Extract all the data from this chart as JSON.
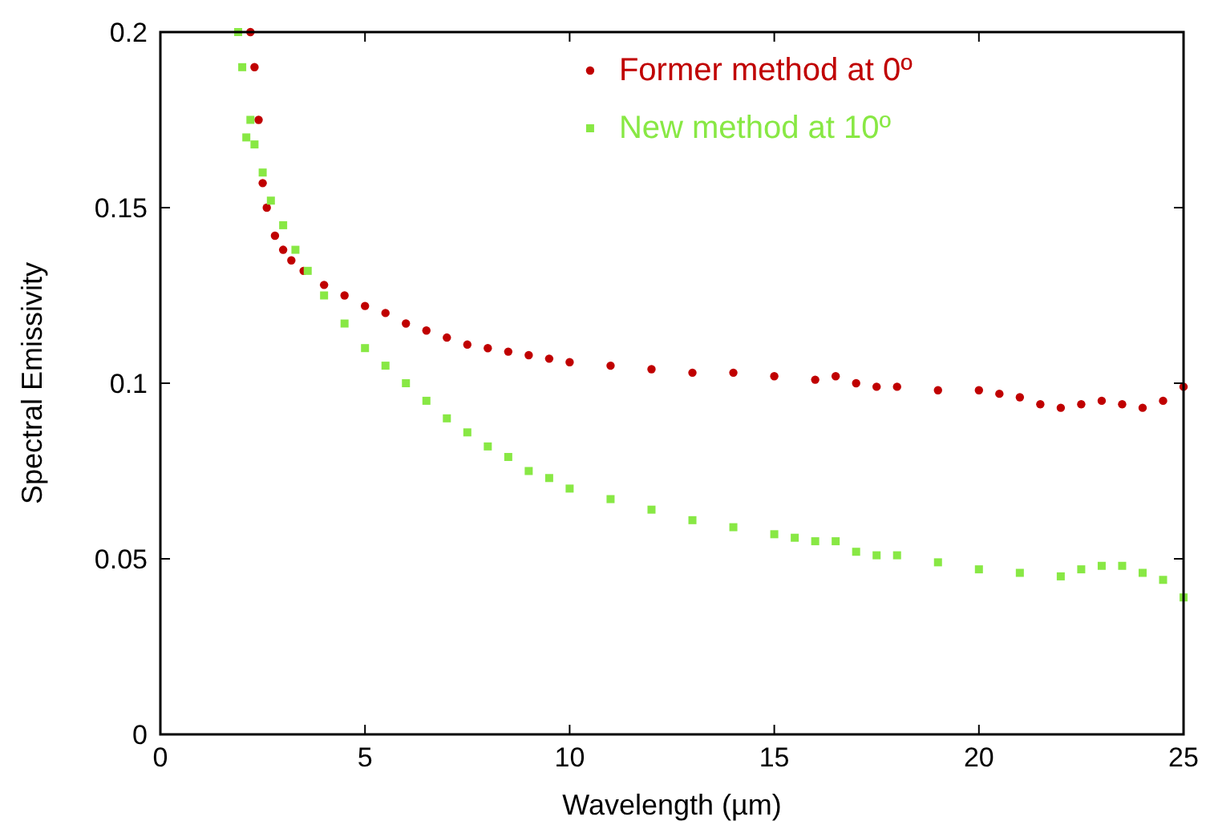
{
  "chart_data": {
    "type": "scatter",
    "xlabel": "Wavelength (µm)",
    "ylabel": "Spectral Emissivity",
    "xlim": [
      0,
      25
    ],
    "ylim": [
      0,
      0.2
    ],
    "xticks": [
      0,
      5,
      10,
      15,
      20,
      25
    ],
    "yticks": [
      0,
      0.05,
      0.1,
      0.15,
      0.2
    ],
    "grid": false,
    "legend": "top right",
    "series": [
      {
        "name": "Former method at 0º",
        "color": "#c00000",
        "marker": "circle",
        "x": [
          2.2,
          2.3,
          2.4,
          2.5,
          2.6,
          2.8,
          3,
          3.2,
          3.5,
          4,
          4.5,
          5,
          5.5,
          6,
          6.5,
          7,
          7.5,
          8,
          8.5,
          9,
          9.5,
          10,
          11,
          12,
          13,
          14,
          15,
          16,
          16.5,
          17,
          17.5,
          18,
          19,
          20,
          20.5,
          21,
          21.5,
          22,
          22.5,
          23,
          23.5,
          24,
          24.5,
          25
        ],
        "values": [
          0.2,
          0.19,
          0.175,
          0.157,
          0.15,
          0.142,
          0.138,
          0.135,
          0.132,
          0.128,
          0.125,
          0.122,
          0.12,
          0.117,
          0.115,
          0.113,
          0.111,
          0.11,
          0.109,
          0.108,
          0.107,
          0.106,
          0.105,
          0.104,
          0.103,
          0.103,
          0.102,
          0.101,
          0.102,
          0.1,
          0.099,
          0.099,
          0.098,
          0.098,
          0.097,
          0.096,
          0.094,
          0.093,
          0.094,
          0.095,
          0.094,
          0.093,
          0.095,
          0.099
        ]
      },
      {
        "name": "New method at 10º",
        "color": "#88e844",
        "marker": "square",
        "x": [
          1.9,
          2,
          2.1,
          2.2,
          2.3,
          2.5,
          2.7,
          3,
          3.3,
          3.6,
          4,
          4.5,
          5,
          5.5,
          6,
          6.5,
          7,
          7.5,
          8,
          8.5,
          9,
          9.5,
          10,
          11,
          12,
          13,
          14,
          15,
          15.5,
          16,
          16.5,
          17,
          17.5,
          18,
          19,
          20,
          21,
          22,
          22.5,
          23,
          23.5,
          24,
          24.5,
          25
        ],
        "values": [
          0.2,
          0.19,
          0.17,
          0.175,
          0.168,
          0.16,
          0.152,
          0.145,
          0.138,
          0.132,
          0.125,
          0.117,
          0.11,
          0.105,
          0.1,
          0.095,
          0.09,
          0.086,
          0.082,
          0.079,
          0.075,
          0.073,
          0.07,
          0.067,
          0.064,
          0.061,
          0.059,
          0.057,
          0.056,
          0.055,
          0.055,
          0.052,
          0.051,
          0.051,
          0.049,
          0.047,
          0.046,
          0.045,
          0.047,
          0.048,
          0.048,
          0.046,
          0.044,
          0.039
        ]
      }
    ]
  }
}
